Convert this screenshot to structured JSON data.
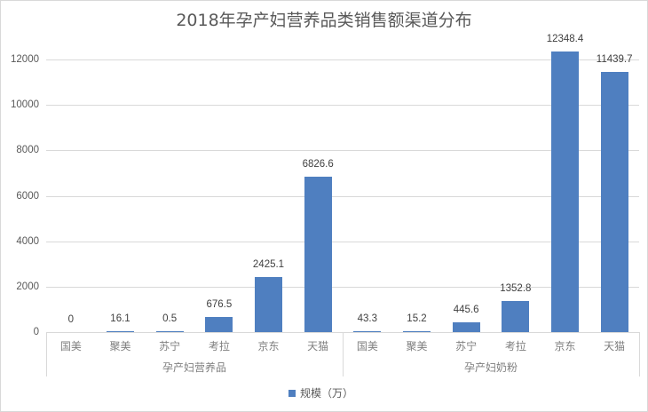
{
  "chart_data": {
    "type": "bar",
    "title": "2018年孕产妇营养品类销售额渠道分布",
    "xlabel": "",
    "ylabel": "",
    "ylim": [
      0,
      12000
    ],
    "yticks": [
      "0",
      "2000",
      "4000",
      "6000",
      "8000",
      "10000",
      "12000"
    ],
    "grid": true,
    "legend_position": "bottom",
    "groups": [
      {
        "name": "孕产妇营养品",
        "categories": [
          "国美",
          "聚美",
          "苏宁",
          "考拉",
          "京东",
          "天猫"
        ],
        "values": [
          0,
          16.1,
          0.5,
          676.5,
          2425.1,
          6826.6
        ],
        "labels": [
          "0",
          "16.1",
          "0.5",
          "676.5",
          "2425.1",
          "6826.6"
        ]
      },
      {
        "name": "孕产妇奶粉",
        "categories": [
          "国美",
          "聚美",
          "苏宁",
          "考拉",
          "京东",
          "天猫"
        ],
        "values": [
          43.3,
          15.2,
          445.6,
          1352.8,
          12348.4,
          11439.7
        ],
        "labels": [
          "43.3",
          "15.2",
          "445.6",
          "1352.8",
          "12348.4",
          "11439.7"
        ]
      }
    ],
    "series": [
      {
        "name": "规模（万）",
        "color": "#4f7fc0"
      }
    ]
  },
  "colors": {
    "bar": "#4f7fc0",
    "grid": "#d9d9d9",
    "text": "#595959"
  }
}
